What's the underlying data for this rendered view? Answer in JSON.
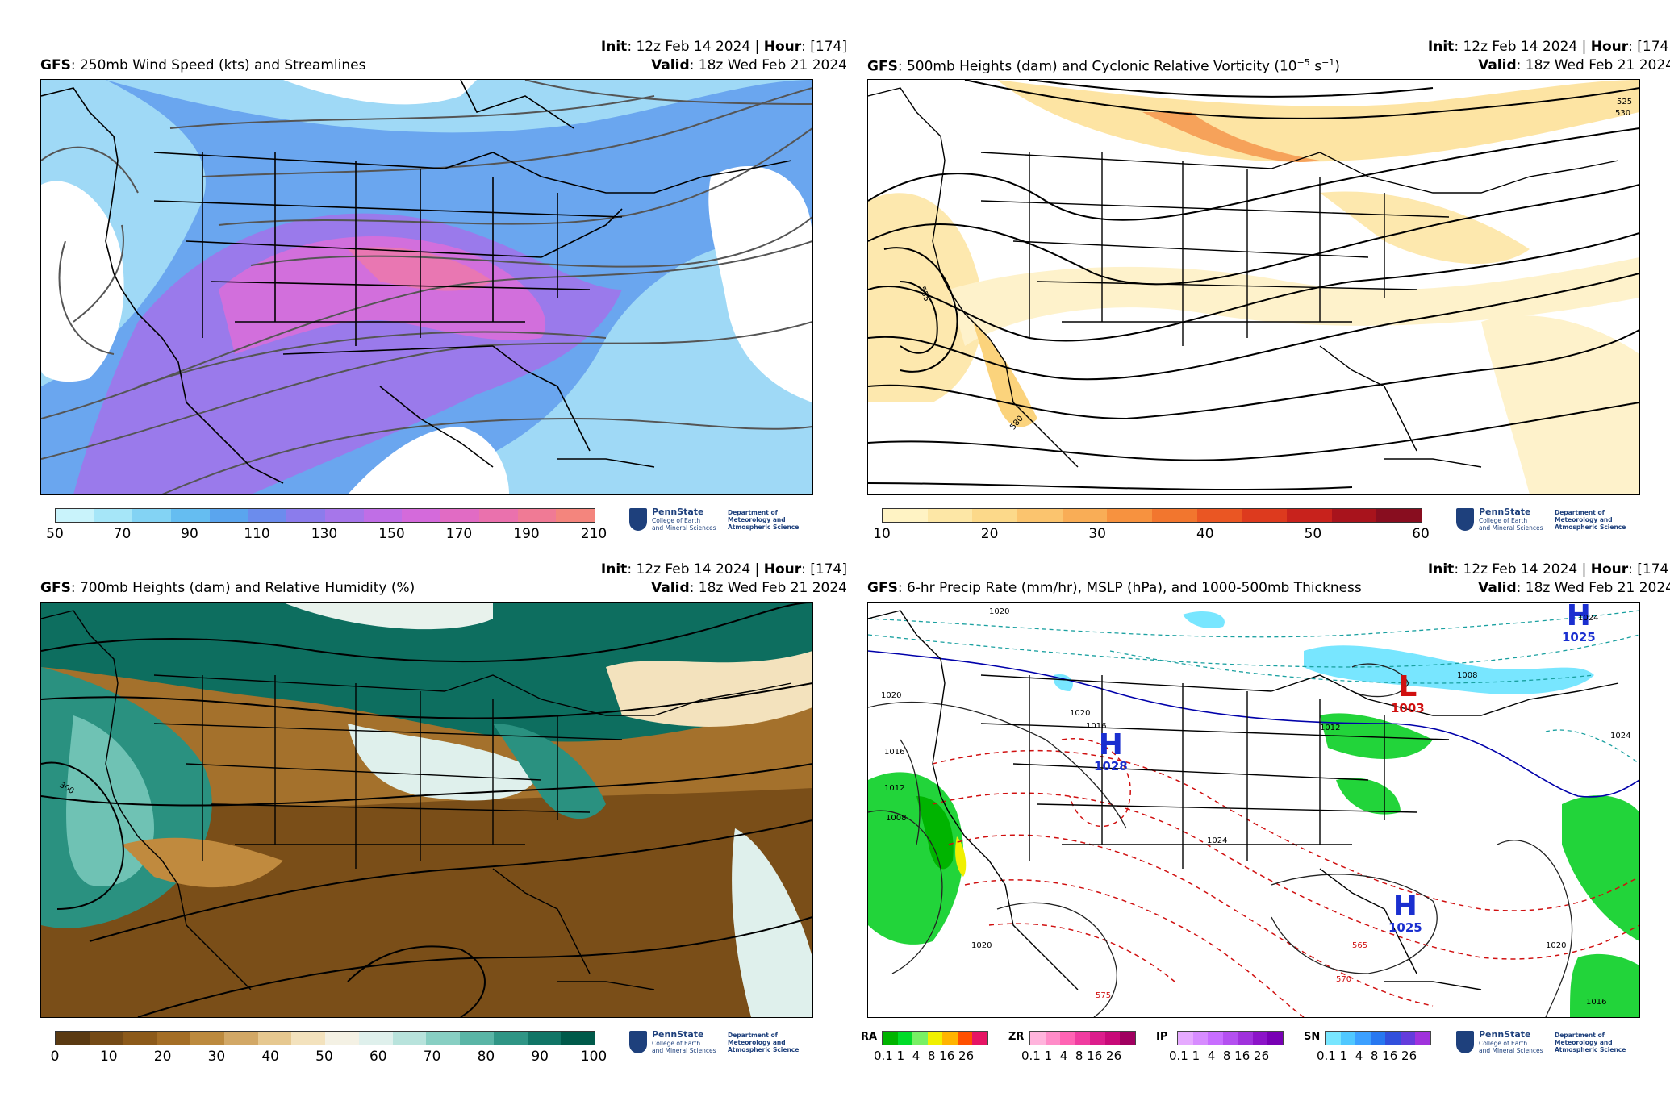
{
  "panels": [
    {
      "model": "GFS",
      "title": ": 250mb Wind Speed (kts) and Streamlines",
      "init_label": "Init",
      "init_value": ": 12z Feb 14 2024 | ",
      "hour_label": "Hour",
      "hour_value": ": [174]",
      "valid_label": "Valid",
      "valid_value": ": 18z Wed Feb 21 2024",
      "colorbar_ticks": [
        "50",
        "70",
        "90",
        "110",
        "130",
        "150",
        "170",
        "190",
        "210"
      ],
      "colors": [
        "#c9f3fb",
        "#a6e6f8",
        "#83d3f4",
        "#65bdf1",
        "#5aa5ee",
        "#6b8ced",
        "#8b7cec",
        "#a676ea",
        "#c06ee6",
        "#d46adb",
        "#e16bc4",
        "#ea71ad",
        "#f07a95",
        "#f4857d"
      ]
    },
    {
      "model": "GFS",
      "title": ": 500mb Heights (dam) and Cyclonic Relative Vorticity (10",
      "title_sup1": "−5",
      "title_mid": " s",
      "title_sup2": "−1",
      "title_end": ")",
      "init_label": "Init",
      "init_value": ": 12z Feb 14 2024 | ",
      "hour_label": "Hour",
      "hour_value": ": [174]",
      "valid_label": "Valid",
      "valid_value": ": 18z Wed Feb 21 2024",
      "colorbar_ticks": [
        "10",
        "20",
        "30",
        "40",
        "50",
        "60"
      ],
      "colors": [
        "#fff3c4",
        "#fde7a6",
        "#fcd98a",
        "#fbc46e",
        "#f9ad56",
        "#f7923f",
        "#f2762e",
        "#ea5623",
        "#dd3a1e",
        "#c8221c",
        "#a8131c",
        "#880d1f"
      ],
      "contour_labels": [
        "525",
        "530",
        "555",
        "580"
      ]
    },
    {
      "model": "GFS",
      "title": ": 700mb Heights (dam) and Relative Humidity (%)",
      "init_label": "Init",
      "init_value": ": 12z Feb 14 2024 | ",
      "hour_label": "Hour",
      "hour_value": ": [174]",
      "valid_label": "Valid",
      "valid_value": ": 18z Wed Feb 21 2024",
      "colorbar_ticks": [
        "0",
        "10",
        "20",
        "30",
        "40",
        "50",
        "60",
        "70",
        "80",
        "90",
        "100"
      ],
      "colors": [
        "#5a3a12",
        "#744a16",
        "#8c5a1a",
        "#a46e26",
        "#bc8a3e",
        "#d2a866",
        "#e6c890",
        "#f3e2bd",
        "#f4f1e4",
        "#dff0ec",
        "#b8e3dc",
        "#88cfc3",
        "#5ab5a6",
        "#2f9585",
        "#117566",
        "#005a4a"
      ],
      "contour_labels": [
        "300"
      ]
    },
    {
      "model": "GFS",
      "title": ": 6-hr Precip Rate (mm/hr), MSLP (hPa), and 1000-500mb Thickness",
      "init_label": "Init",
      "init_value": ": 12z Feb 14 2024 | ",
      "hour_label": "Hour",
      "hour_value": ": [174]",
      "valid_label": "Valid",
      "valid_value": ": 18z Wed Feb 21 2024",
      "pressure_centers": [
        {
          "type": "H",
          "value": "1028",
          "color": "#1a2fd0"
        },
        {
          "type": "L",
          "value": "1003",
          "color": "#d01010"
        },
        {
          "type": "H",
          "value": "1025",
          "color": "#1a2fd0"
        },
        {
          "type": "H",
          "value": "1025",
          "color": "#1a2fd0"
        }
      ],
      "isobar_labels": [
        "1020",
        "1024",
        "1020",
        "1016",
        "1012",
        "1008",
        "1016",
        "1020",
        "1008",
        "1024",
        "1020",
        "1024",
        "1012",
        "1020",
        "1016"
      ],
      "thickness_labels": [
        "565",
        "570",
        "575"
      ],
      "precip_legend": [
        {
          "label": "RA",
          "colors": [
            "#00b400",
            "#00dc28",
            "#78f064",
            "#f0f000",
            "#ffb400",
            "#ff5000",
            "#e61464"
          ],
          "values": [
            "0.1",
            "1",
            "4",
            "8",
            "16",
            "26"
          ]
        },
        {
          "label": "ZR",
          "colors": [
            "#ffb4dc",
            "#ff8cc8",
            "#ff64b4",
            "#f03ca0",
            "#dc1e8c",
            "#c80a78",
            "#a00060"
          ],
          "values": [
            "0.1",
            "1",
            "4",
            "8",
            "16",
            "26"
          ]
        },
        {
          "label": "IP",
          "colors": [
            "#e6aaff",
            "#d78cff",
            "#c86eff",
            "#b450f0",
            "#a032dc",
            "#8c14c8",
            "#7800b4"
          ],
          "values": [
            "0.1",
            "1",
            "4",
            "8",
            "16",
            "26"
          ]
        },
        {
          "label": "SN",
          "colors": [
            "#78e6ff",
            "#50c8ff",
            "#3ca0ff",
            "#2878f0",
            "#3250dc",
            "#643cdc",
            "#a032dc"
          ],
          "values": [
            "0.1",
            "1",
            "4",
            "8",
            "16",
            "26"
          ]
        }
      ]
    }
  ],
  "logo": {
    "university": "PennState",
    "college_line1": "College of Earth",
    "college_line2": "and Mineral Sciences",
    "dept_line1": "Department of",
    "dept_line2": "Meteorology and",
    "dept_line3": "Atmospheric Science"
  }
}
